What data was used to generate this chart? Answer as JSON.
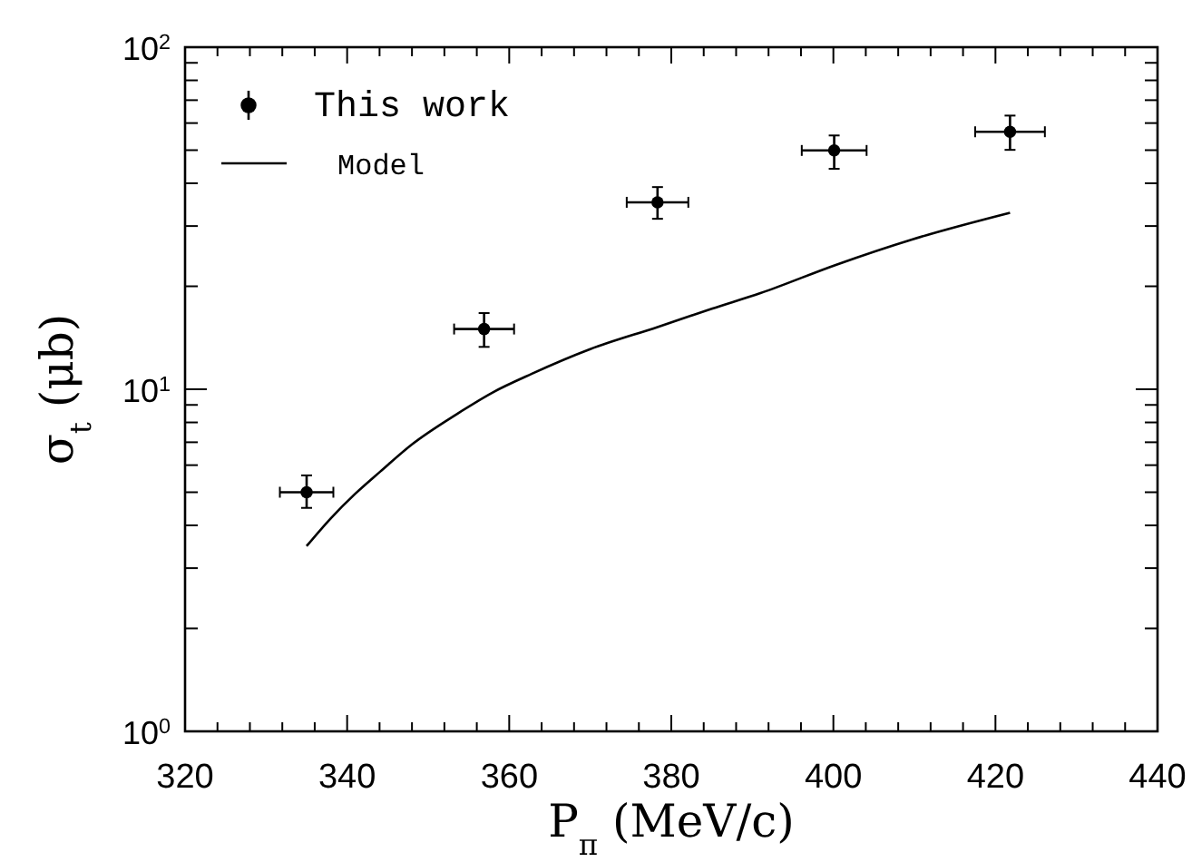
{
  "chart_data": {
    "type": "scatter",
    "xlabel": "P$_{π}$ (MeV/c)",
    "ylabel": "σ$_{t}$ (μb)",
    "log": "y",
    "legend": "top left",
    "marker": "circle",
    "grid": false,
    "xlim": [
      320,
      440
    ],
    "ylim": [
      1,
      100
    ],
    "xticks": [
      320,
      {
        "value": 324,
        "label": null
      },
      {
        "value": 328,
        "label": null
      },
      {
        "value": 332,
        "label": null
      },
      {
        "value": 336,
        "label": null
      },
      340,
      {
        "value": 344,
        "label": null
      },
      {
        "value": 348,
        "label": null
      },
      {
        "value": 352,
        "label": null
      },
      {
        "value": 356,
        "label": null
      },
      360,
      {
        "value": 364,
        "label": null
      },
      {
        "value": 368,
        "label": null
      },
      {
        "value": 372,
        "label": null
      },
      {
        "value": 376,
        "label": null
      },
      380,
      {
        "value": 384,
        "label": null
      },
      {
        "value": 388,
        "label": null
      },
      {
        "value": 392,
        "label": null
      },
      {
        "value": 396,
        "label": null
      },
      400,
      {
        "value": 404,
        "label": null
      },
      {
        "value": 408,
        "label": null
      },
      {
        "value": 412,
        "label": null
      },
      {
        "value": 416,
        "label": null
      },
      420,
      {
        "value": 424,
        "label": null
      },
      {
        "value": 428,
        "label": null
      },
      {
        "value": 432,
        "label": null
      },
      {
        "value": 436,
        "label": null
      },
      440
    ],
    "yticks": [
      {
        "value": 1,
        "label": "10$^{0}$"
      },
      {
        "value": 2,
        "label": null
      },
      {
        "value": 3,
        "label": null
      },
      {
        "value": 4,
        "label": null
      },
      {
        "value": 5,
        "label": null
      },
      {
        "value": 6,
        "label": null
      },
      {
        "value": 7,
        "label": null
      },
      {
        "value": 8,
        "label": null
      },
      {
        "value": 9,
        "label": null
      },
      {
        "value": 10,
        "label": "10$^{1}$"
      },
      {
        "value": 20,
        "label": null
      },
      {
        "value": 30,
        "label": null
      },
      {
        "value": 40,
        "label": null
      },
      {
        "value": 50,
        "label": null
      },
      {
        "value": 60,
        "label": null
      },
      {
        "value": 70,
        "label": null
      },
      {
        "value": 80,
        "label": null
      },
      {
        "value": 90,
        "label": null
      },
      {
        "value": 100,
        "label": "10$^{2}$"
      }
    ],
    "series": [
      {
        "name": "This work",
        "type": "scatter",
        "color": "#000000",
        "x": [
          335.0,
          356.9,
          378.3,
          400.1,
          421.8
        ],
        "values": [
          5.0,
          15.0,
          35.2,
          49.9,
          56.6
        ],
        "errors": [
          [
            4.5,
            5.6
          ],
          [
            13.3,
            16.7
          ],
          [
            31.5,
            39
          ],
          [
            44.1,
            55.2
          ],
          [
            50.1,
            63.1
          ]
        ],
        "xerrors": [
          3.3,
          3.7,
          3.8,
          4.0,
          4.3
        ]
      },
      {
        "name": "Model",
        "type": "line",
        "marker": "none",
        "color": "#000000",
        "line_style": "solid",
        "x": [
          335.0,
          338,
          341,
          344.1,
          348,
          353.5,
          358,
          362.8,
          370,
          378.3,
          385,
          391,
          400.3,
          409.7,
          421.8
        ],
        "values": [
          3.48,
          4.2,
          4.95,
          5.75,
          6.9,
          8.45,
          9.8,
          11.1,
          13.1,
          15.2,
          17.2,
          19.1,
          23.1,
          27.4,
          32.8
        ]
      }
    ]
  }
}
